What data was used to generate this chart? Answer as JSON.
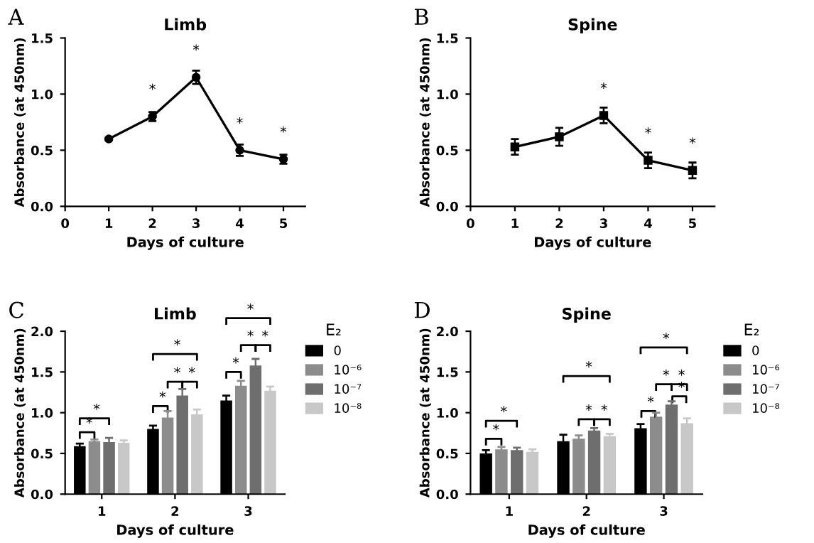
{
  "chart_data": [
    {
      "type": "line",
      "title": "Limb",
      "xlabel": "Days of culture",
      "ylabel": "Absorbance (at 450nm)",
      "marker": "circle",
      "line_style": "solid",
      "x": [
        1,
        2,
        3,
        4,
        5
      ],
      "xlim": [
        0,
        5.5
      ],
      "xticks": [
        0,
        1,
        2,
        3,
        4,
        5
      ],
      "ylim": [
        0,
        1.5
      ],
      "yticks": [
        {
          "value": 0,
          "label": "0.0"
        },
        {
          "value": 0.5,
          "label": "0.5"
        },
        {
          "value": 1,
          "label": "1.0"
        },
        {
          "value": 1.5,
          "label": "1.5"
        }
      ],
      "series": [
        {
          "color": "#000000",
          "values": [
            0.6,
            0.8,
            1.15,
            0.5,
            0.42
          ],
          "errors": [
            0.01,
            0.04,
            0.06,
            0.05,
            0.04
          ]
        }
      ],
      "annotations": [
        "A",
        {
          "text": "*",
          "x": 2,
          "y": 0.8
        },
        {
          "text": "*",
          "x": 3,
          "y": 1.15
        },
        {
          "text": "*",
          "x": 4,
          "y": 0.5
        },
        {
          "text": "*",
          "x": 5,
          "y": 0.42
        }
      ]
    },
    {
      "type": "line",
      "title": "Spine",
      "xlabel": "Days of culture",
      "ylabel": "Absorbance (at 450nm)",
      "marker": "square",
      "line_style": "solid",
      "x": [
        1,
        2,
        3,
        4,
        5
      ],
      "xlim": [
        0,
        5.5
      ],
      "xticks": [
        0,
        1,
        2,
        3,
        4,
        5
      ],
      "ylim": [
        0,
        1.5
      ],
      "yticks": [
        {
          "value": 0,
          "label": "0.0"
        },
        {
          "value": 0.5,
          "label": "0.5"
        },
        {
          "value": 1,
          "label": "1.0"
        },
        {
          "value": 1.5,
          "label": "1.5"
        }
      ],
      "series": [
        {
          "color": "#000000",
          "values": [
            0.53,
            0.62,
            0.81,
            0.41,
            0.32
          ],
          "errors": [
            0.07,
            0.08,
            0.07,
            0.07,
            0.07
          ]
        }
      ],
      "annotations": [
        "B",
        {
          "text": "*",
          "x": 3,
          "y": 0.81
        },
        {
          "text": "*",
          "x": 4,
          "y": 0.41
        },
        {
          "text": "*",
          "x": 5,
          "y": 0.32
        }
      ]
    },
    {
      "type": "bar",
      "title": "Limb",
      "xlabel": "Days of culture",
      "ylabel": "Absorbance (at 450nm)",
      "legend": "right",
      "legend_title": "E₂",
      "categories": [
        "1",
        "2",
        "3"
      ],
      "ylim": [
        0,
        2
      ],
      "yticks": [
        {
          "value": 0,
          "label": "0.0"
        },
        {
          "value": 0.5,
          "label": "0.5"
        },
        {
          "value": 1,
          "label": "1.0"
        },
        {
          "value": 1.5,
          "label": "1.5"
        },
        {
          "value": 2,
          "label": "2.0"
        }
      ],
      "series": [
        {
          "name": "0",
          "color": "#000000",
          "values": [
            0.59,
            0.8,
            1.15
          ],
          "errors": [
            0.03,
            0.04,
            0.06
          ]
        },
        {
          "name": "10⁻⁶",
          "color": "#8c8c8c",
          "values": [
            0.65,
            0.94,
            1.33
          ],
          "errors": [
            0.02,
            0.08,
            0.06
          ]
        },
        {
          "name": "10⁻⁷",
          "color": "#6e6e6e",
          "values": [
            0.64,
            1.21,
            1.58
          ],
          "errors": [
            0.05,
            0.08,
            0.08
          ]
        },
        {
          "name": "10⁻⁸",
          "color": "#c8c8c8",
          "values": [
            0.63,
            0.98,
            1.27
          ],
          "errors": [
            0.03,
            0.06,
            0.05
          ]
        }
      ],
      "annotations": [
        "C",
        "*",
        "*",
        "*",
        "*",
        "*",
        "*",
        "*",
        "*",
        "*",
        "*"
      ]
    },
    {
      "type": "bar",
      "title": "Spine",
      "xlabel": "Days of culture",
      "ylabel": "Absorbance (at 450nm)",
      "legend": "right",
      "legend_title": "E₂",
      "categories": [
        "1",
        "2",
        "3"
      ],
      "ylim": [
        0,
        2
      ],
      "yticks": [
        {
          "value": 0,
          "label": "0.0"
        },
        {
          "value": 0.5,
          "label": "0.5"
        },
        {
          "value": 1,
          "label": "1.0"
        },
        {
          "value": 1.5,
          "label": "1.5"
        },
        {
          "value": 2,
          "label": "2.0"
        }
      ],
      "series": [
        {
          "name": "0",
          "color": "#000000",
          "values": [
            0.5,
            0.65,
            0.81
          ],
          "errors": [
            0.04,
            0.08,
            0.05
          ]
        },
        {
          "name": "10⁻⁶",
          "color": "#8c8c8c",
          "values": [
            0.55,
            0.68,
            0.95
          ],
          "errors": [
            0.03,
            0.04,
            0.05
          ]
        },
        {
          "name": "10⁻⁷",
          "color": "#6e6e6e",
          "values": [
            0.54,
            0.78,
            1.1
          ],
          "errors": [
            0.03,
            0.03,
            0.04
          ]
        },
        {
          "name": "10⁻⁸",
          "color": "#c8c8c8",
          "values": [
            0.52,
            0.71,
            0.87
          ],
          "errors": [
            0.03,
            0.03,
            0.06
          ]
        }
      ],
      "annotations": [
        "D",
        "*",
        "*",
        "*",
        "*",
        "*",
        "*",
        "*",
        "*",
        "*",
        "*"
      ]
    }
  ]
}
